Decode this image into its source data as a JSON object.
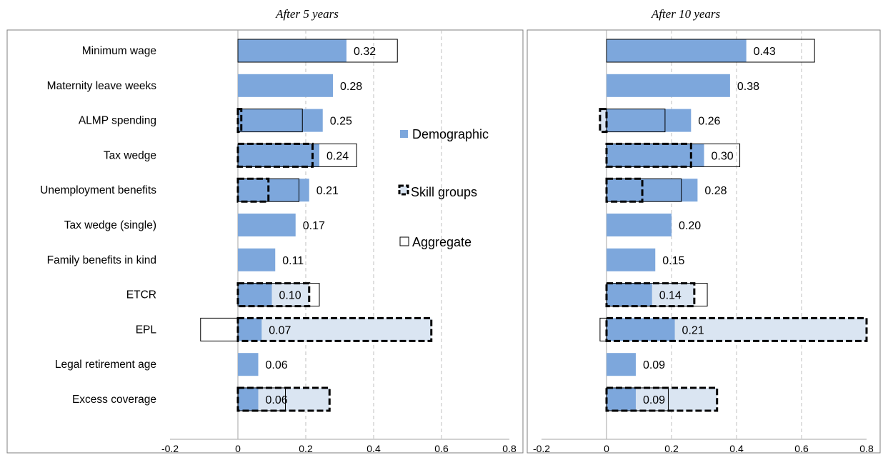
{
  "chart_data": [
    {
      "type": "bar",
      "orientation": "horizontal",
      "title": "After 5 years",
      "categories": [
        "Minimum wage",
        "Maternity leave weeks",
        "ALMP spending",
        "Tax wedge",
        "Unemployment benefits",
        "Tax wedge (single)",
        "Family benefits in kind",
        "ETCR",
        "EPL",
        "Legal retirement age",
        "Excess coverage"
      ],
      "xlim": [
        -0.2,
        0.8
      ],
      "xticks": [
        "-0.2",
        "0",
        "0.2",
        "0.4",
        "0.6",
        "0.8"
      ],
      "grid": true,
      "series": [
        {
          "name": "Demographic",
          "values": [
            0.32,
            0.28,
            0.25,
            0.24,
            0.21,
            0.17,
            0.11,
            0.1,
            0.07,
            0.06,
            0.06
          ]
        },
        {
          "name": "Skill groups",
          "values": [
            null,
            null,
            0.01,
            0.22,
            0.09,
            null,
            null,
            0.21,
            0.57,
            null,
            0.27
          ]
        },
        {
          "name": "Aggregate",
          "values": [
            0.47,
            null,
            0.19,
            0.35,
            0.18,
            null,
            null,
            0.24,
            -0.11,
            null,
            0.14
          ]
        }
      ],
      "data_labels": [
        "0.32",
        "0.28",
        "0.25",
        "0.24",
        "0.21",
        "0.17",
        "0.11",
        "0.10",
        "0.07",
        "0.06",
        "0.06"
      ]
    },
    {
      "type": "bar",
      "orientation": "horizontal",
      "title": "After 10 years",
      "categories": [
        "Minimum wage",
        "Maternity leave weeks",
        "ALMP spending",
        "Tax wedge",
        "Unemployment benefits",
        "Tax wedge (single)",
        "Family benefits in kind",
        "ETCR",
        "EPL",
        "Legal retirement age",
        "Excess coverage"
      ],
      "xlim": [
        -0.2,
        0.8
      ],
      "xticks": [
        "-0.2",
        "0",
        "0.2",
        "0.4",
        "0.6",
        "0.8"
      ],
      "grid": true,
      "series": [
        {
          "name": "Demographic",
          "values": [
            0.43,
            0.38,
            0.26,
            0.3,
            0.28,
            0.2,
            0.15,
            0.14,
            0.21,
            0.09,
            0.09
          ]
        },
        {
          "name": "Skill groups",
          "values": [
            null,
            null,
            -0.02,
            0.26,
            0.11,
            null,
            null,
            0.27,
            0.8,
            null,
            0.34
          ]
        },
        {
          "name": "Aggregate",
          "values": [
            0.64,
            null,
            0.18,
            0.41,
            0.23,
            null,
            null,
            0.31,
            -0.02,
            null,
            0.19
          ]
        }
      ],
      "data_labels": [
        "0.43",
        "0.38",
        "0.26",
        "0.30",
        "0.28",
        "0.20",
        "0.15",
        "0.14",
        "0.21",
        "0.09",
        "0.09"
      ]
    }
  ],
  "legend": {
    "placement": "center",
    "items": [
      "Demographic",
      "Skill groups",
      "Aggregate"
    ]
  },
  "colors": {
    "demographic": "#7da7dc",
    "skill_fill": "#dae5f2",
    "skill_border": "#000000",
    "aggregate_border": "#000000",
    "grid": "#bfbfbf"
  }
}
